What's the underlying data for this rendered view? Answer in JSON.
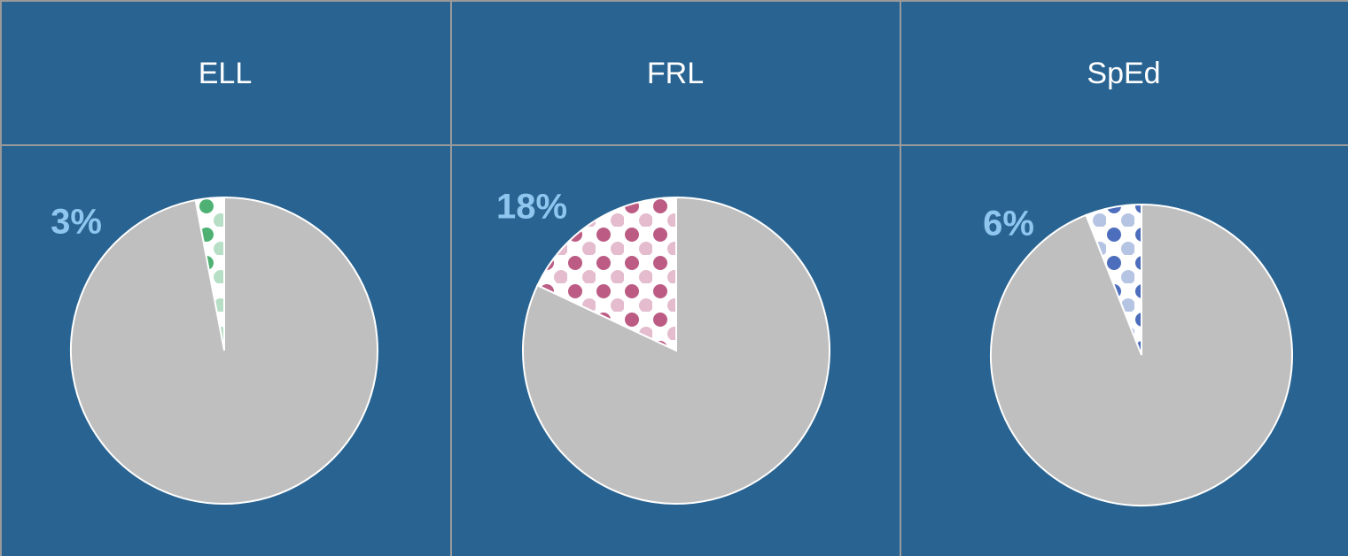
{
  "chart_data": [
    {
      "type": "pie",
      "title": "ELL",
      "values": [
        3,
        97
      ],
      "value_labels": [
        "3%",
        null
      ],
      "colors": [
        "#ffffff",
        "#bfbfbf"
      ],
      "pattern_color": "#2fa35a"
    },
    {
      "type": "pie",
      "title": "FRL",
      "values": [
        18,
        82
      ],
      "value_labels": [
        "18%",
        null
      ],
      "colors": [
        "#ffffff",
        "#bfbfbf"
      ],
      "pattern_color": "#b0406f"
    },
    {
      "type": "pie",
      "title": "SpEd",
      "values": [
        6,
        94
      ],
      "value_labels": [
        "6%",
        null
      ],
      "colors": [
        "#ffffff",
        "#bfbfbf"
      ],
      "pattern_color": "#2e55b0"
    }
  ]
}
